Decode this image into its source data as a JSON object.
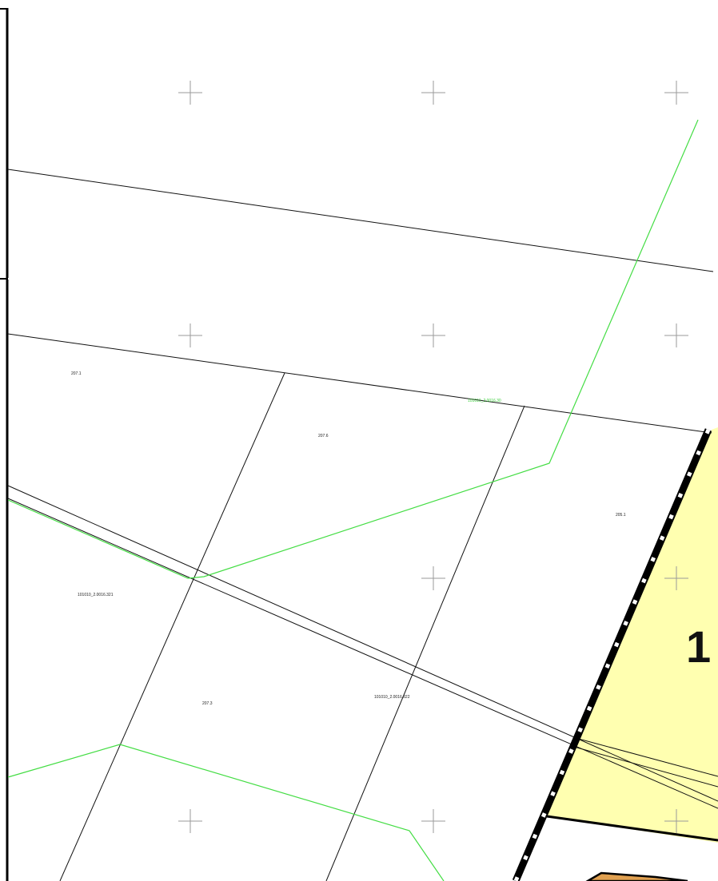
{
  "map": {
    "zone_number": "1",
    "parcel_labels": [
      {
        "id": "p1",
        "text": "207.1"
      },
      {
        "id": "p2",
        "text": "207.6"
      },
      {
        "id": "p3",
        "text": "205.1"
      },
      {
        "id": "p4",
        "text": "101010_2.0016.321"
      },
      {
        "id": "p5",
        "text": "207.3"
      },
      {
        "id": "p6",
        "text": "101010_2.0016.322"
      }
    ],
    "green_line_label": "101010_2.0016.30",
    "colors": {
      "zone_fill": "#ffffb0",
      "green_line": "#44dd44",
      "boundary": "#000000",
      "orange_feature": "#e0a050",
      "grid_cross": "#999999"
    }
  }
}
